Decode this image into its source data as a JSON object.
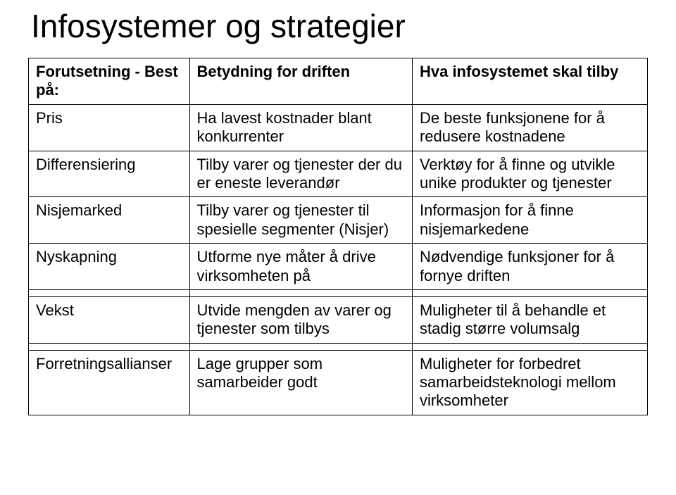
{
  "title": "Infosystemer og strategier",
  "table": {
    "background_color": "#ffffff",
    "border_color": "#000000",
    "text_color": "#000000",
    "font_family": "Arial",
    "header_fontsize": 22,
    "cell_fontsize": 22,
    "title_fontsize": 46,
    "columns": [
      "Forutsetning - Best på:",
      "Betydning for driften",
      "Hva infosystemet skal tilby"
    ],
    "rows": [
      [
        "Pris",
        "Ha lavest kostnader blant konkurrenter",
        "De beste funksjonene for å redusere kostnadene"
      ],
      [
        "Differensiering",
        "Tilby varer og tjenester der du er eneste leverandør",
        "Verktøy for å finne og utvikle unike produkter og tjenester"
      ],
      [
        "Nisjemarked",
        "Tilby varer og tjenester til spesielle segmenter (Nisjer)",
        "Informasjon for å finne nisjemarkedene"
      ],
      [
        "Nyskapning",
        "Utforme nye måter å drive virksomheten på",
        "Nødvendige funksjoner for å fornye driften"
      ]
    ],
    "gap_row1": [
      "Vekst",
      "Utvide mengden av varer og tjenester som tilbys",
      "Muligheter til å behandle et stadig større volumsalg"
    ],
    "gap_row2": [
      "Forretningsallianser",
      "Lage grupper som samarbeider godt",
      "Muligheter for forbedret samarbeidsteknologi mellom virksomheter"
    ]
  }
}
